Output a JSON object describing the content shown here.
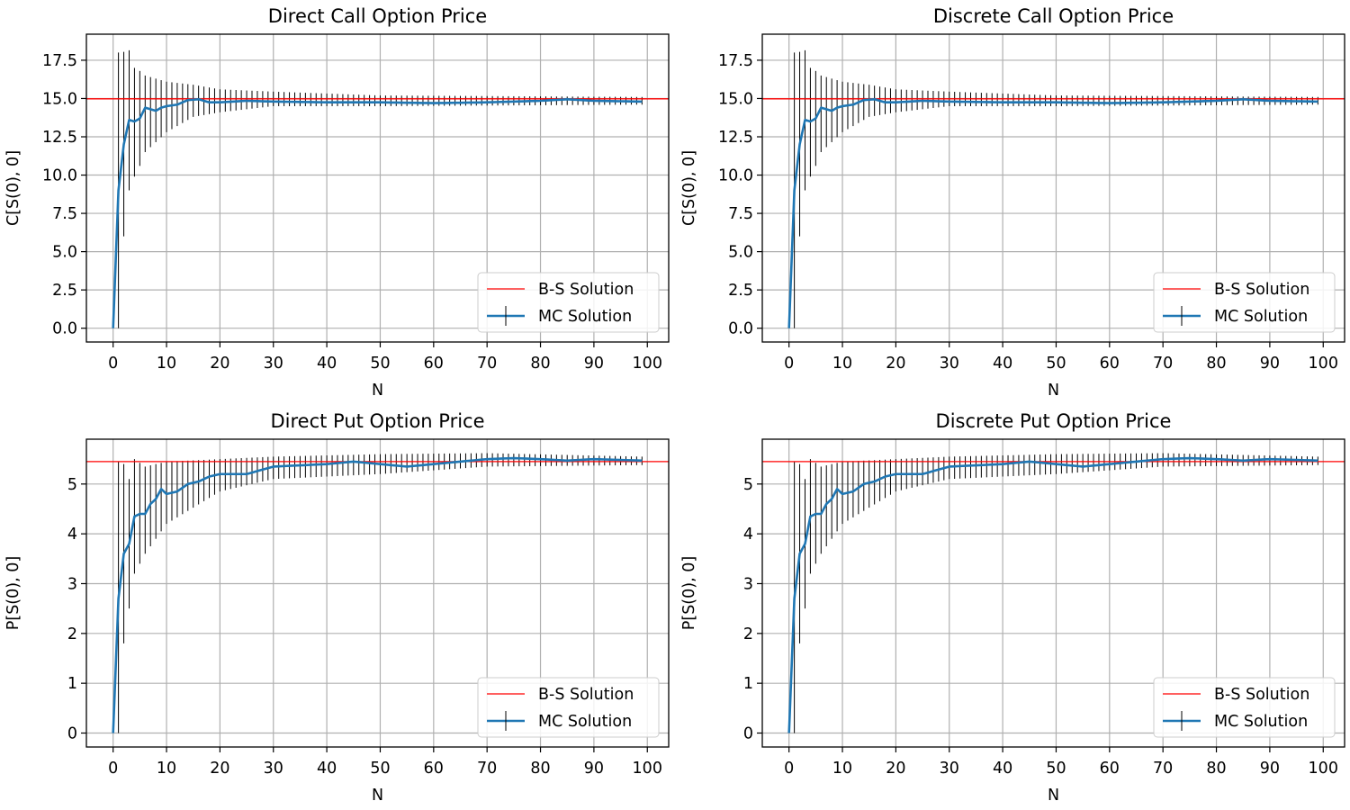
{
  "chart_data": [
    {
      "type": "line",
      "title": "Direct Call Option Price",
      "xlabel": "N",
      "ylabel": "C[S(0), 0]",
      "xlim": [
        -5,
        104
      ],
      "ylim": [
        -0.9,
        19.2
      ],
      "xticks": [
        0,
        10,
        20,
        30,
        40,
        50,
        60,
        70,
        80,
        90,
        100
      ],
      "yticks": [
        0.0,
        2.5,
        5.0,
        7.5,
        10.0,
        12.5,
        15.0,
        17.5
      ],
      "ytick_labels": [
        "0.0",
        "2.5",
        "5.0",
        "7.5",
        "10.0",
        "12.5",
        "15.0",
        "17.5"
      ],
      "grid": true,
      "legend": "lower-right",
      "bs_value": 14.98,
      "series": [
        {
          "name": "B-S Solution",
          "color": "#ff0000",
          "style": "hline"
        },
        {
          "name": "MC Solution",
          "color": "#1f77b4",
          "style": "errorbar",
          "x_range": [
            0,
            99
          ],
          "key_y": [
            [
              0,
              0
            ],
            [
              1,
              9.0
            ],
            [
              2,
              12.0
            ],
            [
              3,
              13.6
            ],
            [
              4,
              13.5
            ],
            [
              5,
              13.7
            ],
            [
              6,
              14.4
            ],
            [
              7,
              14.3
            ],
            [
              8,
              14.2
            ],
            [
              9,
              14.4
            ],
            [
              10,
              14.5
            ],
            [
              12,
              14.6
            ],
            [
              14,
              14.9
            ],
            [
              16,
              14.95
            ],
            [
              18,
              14.75
            ],
            [
              20,
              14.75
            ],
            [
              25,
              14.85
            ],
            [
              30,
              14.8
            ],
            [
              40,
              14.75
            ],
            [
              50,
              14.75
            ],
            [
              60,
              14.7
            ],
            [
              70,
              14.75
            ],
            [
              80,
              14.85
            ],
            [
              85,
              14.95
            ],
            [
              90,
              14.85
            ],
            [
              99,
              14.8
            ]
          ],
          "yerr_top": [
            [
              1,
              18.0
            ],
            [
              2,
              18.05
            ],
            [
              3,
              18.15
            ],
            [
              4,
              17.0
            ],
            [
              5,
              16.8
            ],
            [
              6,
              16.5
            ],
            [
              10,
              16.1
            ],
            [
              15,
              15.9
            ],
            [
              20,
              15.6
            ],
            [
              30,
              15.45
            ],
            [
              50,
              15.2
            ],
            [
              99,
              15.1
            ]
          ],
          "yerr_bottom": [
            [
              1,
              0.0
            ],
            [
              2,
              6.0
            ],
            [
              3,
              9.0
            ],
            [
              4,
              9.9
            ],
            [
              5,
              10.6
            ],
            [
              6,
              11.5
            ],
            [
              10,
              12.8
            ],
            [
              15,
              13.8
            ],
            [
              20,
              14.1
            ],
            [
              30,
              14.5
            ],
            [
              50,
              14.5
            ],
            [
              99,
              14.6
            ]
          ]
        }
      ]
    },
    {
      "type": "line",
      "title": "Discrete Call Option Price",
      "xlabel": "N",
      "ylabel": "C[S(0), 0]",
      "xlim": [
        -5,
        104
      ],
      "ylim": [
        -0.9,
        19.2
      ],
      "xticks": [
        0,
        10,
        20,
        30,
        40,
        50,
        60,
        70,
        80,
        90,
        100
      ],
      "yticks": [
        0.0,
        2.5,
        5.0,
        7.5,
        10.0,
        12.5,
        15.0,
        17.5
      ],
      "ytick_labels": [
        "0.0",
        "2.5",
        "5.0",
        "7.5",
        "10.0",
        "12.5",
        "15.0",
        "17.5"
      ],
      "grid": true,
      "legend": "lower-right",
      "bs_value": 14.98,
      "series": [
        {
          "name": "B-S Solution",
          "color": "#ff0000",
          "style": "hline"
        },
        {
          "name": "MC Solution",
          "color": "#1f77b4",
          "style": "errorbar",
          "x_range": [
            0,
            99
          ],
          "key_y": [
            [
              0,
              0
            ],
            [
              1,
              9.0
            ],
            [
              2,
              12.0
            ],
            [
              3,
              13.6
            ],
            [
              4,
              13.5
            ],
            [
              5,
              13.7
            ],
            [
              6,
              14.4
            ],
            [
              7,
              14.3
            ],
            [
              8,
              14.2
            ],
            [
              9,
              14.4
            ],
            [
              10,
              14.5
            ],
            [
              12,
              14.6
            ],
            [
              14,
              14.9
            ],
            [
              16,
              14.95
            ],
            [
              18,
              14.75
            ],
            [
              20,
              14.75
            ],
            [
              25,
              14.85
            ],
            [
              30,
              14.8
            ],
            [
              40,
              14.75
            ],
            [
              50,
              14.75
            ],
            [
              60,
              14.7
            ],
            [
              70,
              14.75
            ],
            [
              80,
              14.85
            ],
            [
              85,
              14.95
            ],
            [
              90,
              14.85
            ],
            [
              99,
              14.8
            ]
          ],
          "yerr_top": [
            [
              1,
              18.0
            ],
            [
              2,
              18.05
            ],
            [
              3,
              18.15
            ],
            [
              4,
              17.0
            ],
            [
              5,
              16.8
            ],
            [
              6,
              16.5
            ],
            [
              10,
              16.1
            ],
            [
              15,
              15.9
            ],
            [
              20,
              15.6
            ],
            [
              30,
              15.45
            ],
            [
              50,
              15.2
            ],
            [
              99,
              15.1
            ]
          ],
          "yerr_bottom": [
            [
              1,
              0.0
            ],
            [
              2,
              6.0
            ],
            [
              3,
              9.0
            ],
            [
              4,
              9.9
            ],
            [
              5,
              10.6
            ],
            [
              6,
              11.5
            ],
            [
              10,
              12.8
            ],
            [
              15,
              13.8
            ],
            [
              20,
              14.1
            ],
            [
              30,
              14.5
            ],
            [
              50,
              14.5
            ],
            [
              99,
              14.6
            ]
          ]
        }
      ]
    },
    {
      "type": "line",
      "title": "Direct Put Option Price",
      "xlabel": "N",
      "ylabel": "P[S(0), 0]",
      "xlim": [
        -5,
        104
      ],
      "ylim": [
        -0.28,
        5.9
      ],
      "xticks": [
        0,
        10,
        20,
        30,
        40,
        50,
        60,
        70,
        80,
        90,
        100
      ],
      "yticks": [
        0,
        1,
        2,
        3,
        4,
        5
      ],
      "ytick_labels": [
        "0",
        "1",
        "2",
        "3",
        "4",
        "5"
      ],
      "grid": true,
      "legend": "lower-right",
      "bs_value": 5.45,
      "series": [
        {
          "name": "B-S Solution",
          "color": "#ff0000",
          "style": "hline"
        },
        {
          "name": "MC Solution",
          "color": "#1f77b4",
          "style": "errorbar",
          "x_range": [
            0,
            99
          ],
          "key_y": [
            [
              0,
              0
            ],
            [
              1,
              2.7
            ],
            [
              2,
              3.6
            ],
            [
              3,
              3.8
            ],
            [
              4,
              4.35
            ],
            [
              5,
              4.4
            ],
            [
              6,
              4.4
            ],
            [
              7,
              4.6
            ],
            [
              8,
              4.7
            ],
            [
              9,
              4.9
            ],
            [
              10,
              4.8
            ],
            [
              12,
              4.85
            ],
            [
              14,
              5.0
            ],
            [
              16,
              5.05
            ],
            [
              18,
              5.15
            ],
            [
              20,
              5.2
            ],
            [
              25,
              5.2
            ],
            [
              30,
              5.35
            ],
            [
              40,
              5.4
            ],
            [
              45,
              5.45
            ],
            [
              50,
              5.4
            ],
            [
              55,
              5.35
            ],
            [
              60,
              5.4
            ],
            [
              70,
              5.5
            ],
            [
              75,
              5.52
            ],
            [
              80,
              5.5
            ],
            [
              85,
              5.47
            ],
            [
              90,
              5.5
            ],
            [
              99,
              5.47
            ]
          ],
          "yerr_top": [
            [
              1,
              5.45
            ],
            [
              2,
              5.4
            ],
            [
              3,
              5.1
            ],
            [
              4,
              5.5
            ],
            [
              6,
              5.35
            ],
            [
              10,
              5.45
            ],
            [
              20,
              5.5
            ],
            [
              30,
              5.55
            ],
            [
              50,
              5.6
            ],
            [
              70,
              5.62
            ],
            [
              99,
              5.55
            ]
          ],
          "yerr_bottom": [
            [
              1,
              0.0
            ],
            [
              2,
              1.8
            ],
            [
              3,
              2.5
            ],
            [
              4,
              3.2
            ],
            [
              6,
              3.6
            ],
            [
              10,
              4.2
            ],
            [
              20,
              4.85
            ],
            [
              30,
              5.1
            ],
            [
              50,
              5.2
            ],
            [
              70,
              5.35
            ],
            [
              99,
              5.38
            ]
          ]
        }
      ]
    },
    {
      "type": "line",
      "title": "Discrete Put Option Price",
      "xlabel": "N",
      "ylabel": "P[S(0), 0]",
      "xlim": [
        -5,
        104
      ],
      "ylim": [
        -0.28,
        5.9
      ],
      "xticks": [
        0,
        10,
        20,
        30,
        40,
        50,
        60,
        70,
        80,
        90,
        100
      ],
      "yticks": [
        0,
        1,
        2,
        3,
        4,
        5
      ],
      "ytick_labels": [
        "0",
        "1",
        "2",
        "3",
        "4",
        "5"
      ],
      "grid": true,
      "legend": "lower-right",
      "bs_value": 5.45,
      "series": [
        {
          "name": "B-S Solution",
          "color": "#ff0000",
          "style": "hline"
        },
        {
          "name": "MC Solution",
          "color": "#1f77b4",
          "style": "errorbar",
          "x_range": [
            0,
            99
          ],
          "key_y": [
            [
              0,
              0
            ],
            [
              1,
              2.7
            ],
            [
              2,
              3.6
            ],
            [
              3,
              3.8
            ],
            [
              4,
              4.35
            ],
            [
              5,
              4.4
            ],
            [
              6,
              4.4
            ],
            [
              7,
              4.6
            ],
            [
              8,
              4.7
            ],
            [
              9,
              4.9
            ],
            [
              10,
              4.8
            ],
            [
              12,
              4.85
            ],
            [
              14,
              5.0
            ],
            [
              16,
              5.05
            ],
            [
              18,
              5.15
            ],
            [
              20,
              5.2
            ],
            [
              25,
              5.2
            ],
            [
              30,
              5.35
            ],
            [
              40,
              5.4
            ],
            [
              45,
              5.45
            ],
            [
              50,
              5.4
            ],
            [
              55,
              5.35
            ],
            [
              60,
              5.4
            ],
            [
              70,
              5.5
            ],
            [
              75,
              5.52
            ],
            [
              80,
              5.5
            ],
            [
              85,
              5.47
            ],
            [
              90,
              5.5
            ],
            [
              99,
              5.47
            ]
          ],
          "yerr_top": [
            [
              1,
              5.45
            ],
            [
              2,
              5.4
            ],
            [
              3,
              5.1
            ],
            [
              4,
              5.5
            ],
            [
              6,
              5.35
            ],
            [
              10,
              5.45
            ],
            [
              20,
              5.5
            ],
            [
              30,
              5.55
            ],
            [
              50,
              5.6
            ],
            [
              70,
              5.62
            ],
            [
              99,
              5.55
            ]
          ],
          "yerr_bottom": [
            [
              1,
              0.0
            ],
            [
              2,
              1.8
            ],
            [
              3,
              2.5
            ],
            [
              4,
              3.2
            ],
            [
              6,
              3.6
            ],
            [
              10,
              4.2
            ],
            [
              20,
              4.85
            ],
            [
              30,
              5.1
            ],
            [
              50,
              5.2
            ],
            [
              70,
              5.35
            ],
            [
              99,
              5.38
            ]
          ]
        }
      ]
    }
  ]
}
